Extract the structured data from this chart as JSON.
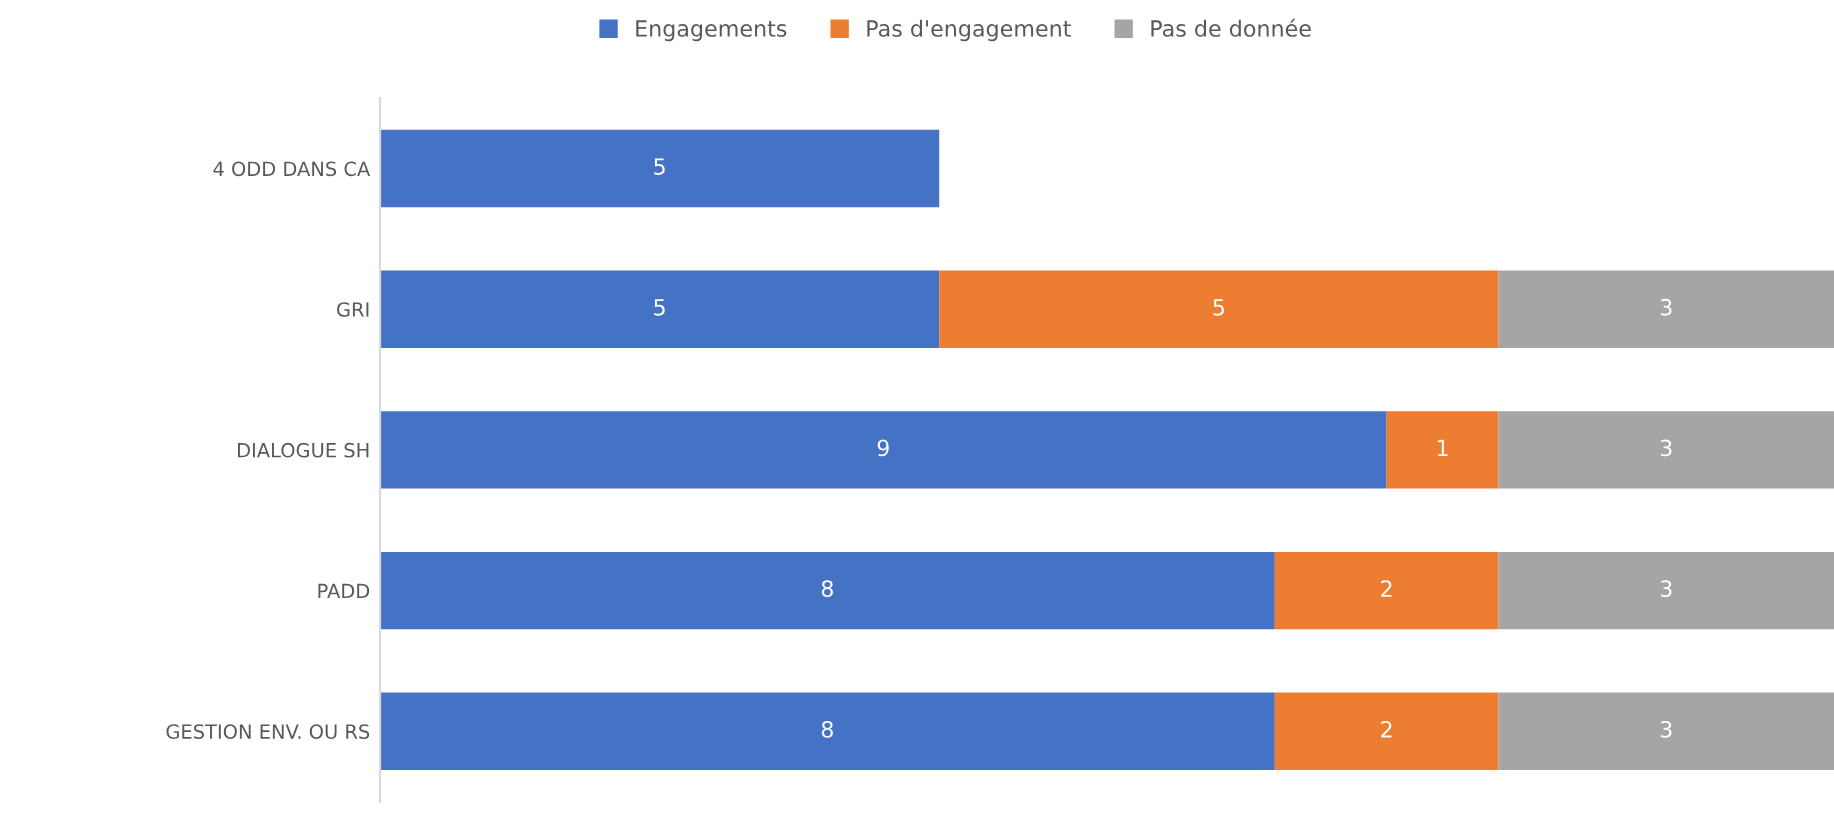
{
  "chart_data": {
    "type": "bar",
    "orientation": "horizontal",
    "stacked": true,
    "categories": [
      "4 ODD DANS CA",
      "GRI",
      "DIALOGUE SH",
      "PADD",
      "GESTION ENV. OU RS"
    ],
    "series": [
      {
        "name": "Engagements",
        "color": "#4472c4",
        "values": [
          5,
          5,
          9,
          8,
          8
        ]
      },
      {
        "name": "Pas d'engagement",
        "color": "#ed7d31",
        "values": [
          null,
          5,
          1,
          2,
          2
        ]
      },
      {
        "name": "Pas de donnée",
        "color": "#a5a5a5",
        "values": [
          null,
          3,
          3,
          3,
          3
        ]
      }
    ],
    "xlim": [
      0,
      13
    ],
    "tick_labels": "y",
    "data_labels": true,
    "legend": "top"
  }
}
